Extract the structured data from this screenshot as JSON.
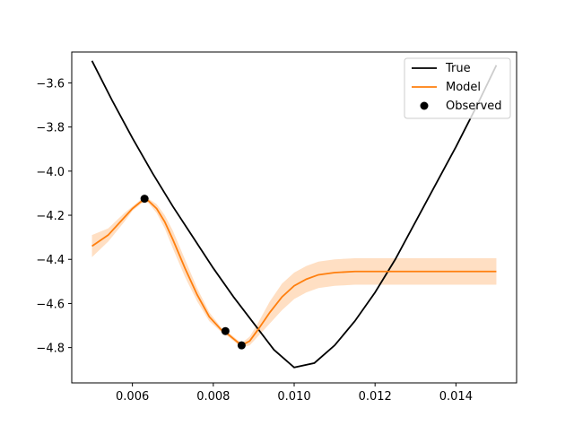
{
  "chart_data": {
    "type": "line",
    "title": "",
    "xlabel": "",
    "ylabel": "",
    "xlim": [
      0.0045,
      0.0155
    ],
    "ylim": [
      -4.96,
      -3.46
    ],
    "xticks": [
      0.006,
      0.008,
      0.01,
      0.012,
      0.014
    ],
    "xtick_labels": [
      "0.006",
      "0.008",
      "0.010",
      "0.012",
      "0.014"
    ],
    "yticks": [
      -3.6,
      -3.8,
      -4.0,
      -4.2,
      -4.4,
      -4.6,
      -4.8
    ],
    "ytick_labels": [
      "−3.6",
      "−3.8",
      "−4.0",
      "−4.2",
      "−4.4",
      "−4.6",
      "−4.8"
    ],
    "grid": false,
    "legend_placement": "top-right",
    "series": [
      {
        "name": "True",
        "color": "#000000",
        "x": [
          0.005,
          0.0055,
          0.006,
          0.0065,
          0.007,
          0.0075,
          0.008,
          0.0085,
          0.009,
          0.0095,
          0.01,
          0.0105,
          0.011,
          0.0115,
          0.012,
          0.0125,
          0.013,
          0.0135,
          0.014,
          0.0145,
          0.015
        ],
        "y": [
          -3.5,
          -3.68,
          -3.85,
          -4.01,
          -4.16,
          -4.3,
          -4.44,
          -4.57,
          -4.69,
          -4.81,
          -4.89,
          -4.87,
          -4.79,
          -4.68,
          -4.55,
          -4.4,
          -4.23,
          -4.06,
          -3.89,
          -3.71,
          -3.52
        ]
      },
      {
        "name": "Model",
        "color": "#ff7f0e",
        "x": [
          0.005,
          0.0054,
          0.0058,
          0.006,
          0.0062,
          0.0063,
          0.0064,
          0.0066,
          0.0068,
          0.007,
          0.0073,
          0.0076,
          0.0079,
          0.0082,
          0.0083,
          0.0085,
          0.0087,
          0.0089,
          0.0091,
          0.0094,
          0.0097,
          0.01,
          0.0103,
          0.0106,
          0.011,
          0.0115,
          0.012,
          0.013,
          0.014,
          0.015
        ],
        "y": [
          -4.34,
          -4.29,
          -4.21,
          -4.17,
          -4.14,
          -4.13,
          -4.135,
          -4.17,
          -4.23,
          -4.31,
          -4.44,
          -4.56,
          -4.66,
          -4.72,
          -4.73,
          -4.76,
          -4.79,
          -4.77,
          -4.72,
          -4.64,
          -4.57,
          -4.52,
          -4.49,
          -4.47,
          -4.46,
          -4.455,
          -4.455,
          -4.455,
          -4.455,
          -4.455
        ],
        "band_lower": [
          -4.39,
          -4.32,
          -4.23,
          -4.18,
          -4.15,
          -4.14,
          -4.145,
          -4.19,
          -4.26,
          -4.35,
          -4.48,
          -4.59,
          -4.68,
          -4.73,
          -4.74,
          -4.77,
          -4.8,
          -4.79,
          -4.75,
          -4.69,
          -4.63,
          -4.58,
          -4.55,
          -4.53,
          -4.52,
          -4.515,
          -4.515,
          -4.515,
          -4.515,
          -4.515
        ],
        "band_upper": [
          -4.29,
          -4.26,
          -4.19,
          -4.16,
          -4.13,
          -4.12,
          -4.125,
          -4.15,
          -4.2,
          -4.27,
          -4.4,
          -4.53,
          -4.64,
          -4.71,
          -4.72,
          -4.75,
          -4.78,
          -4.75,
          -4.69,
          -4.59,
          -4.51,
          -4.46,
          -4.43,
          -4.41,
          -4.4,
          -4.395,
          -4.395,
          -4.395,
          -4.395,
          -4.395
        ]
      },
      {
        "name": "Observed",
        "color": "#000000",
        "x": [
          0.0063,
          0.0083,
          0.0087
        ],
        "y": [
          -4.125,
          -4.725,
          -4.79
        ]
      }
    ]
  }
}
